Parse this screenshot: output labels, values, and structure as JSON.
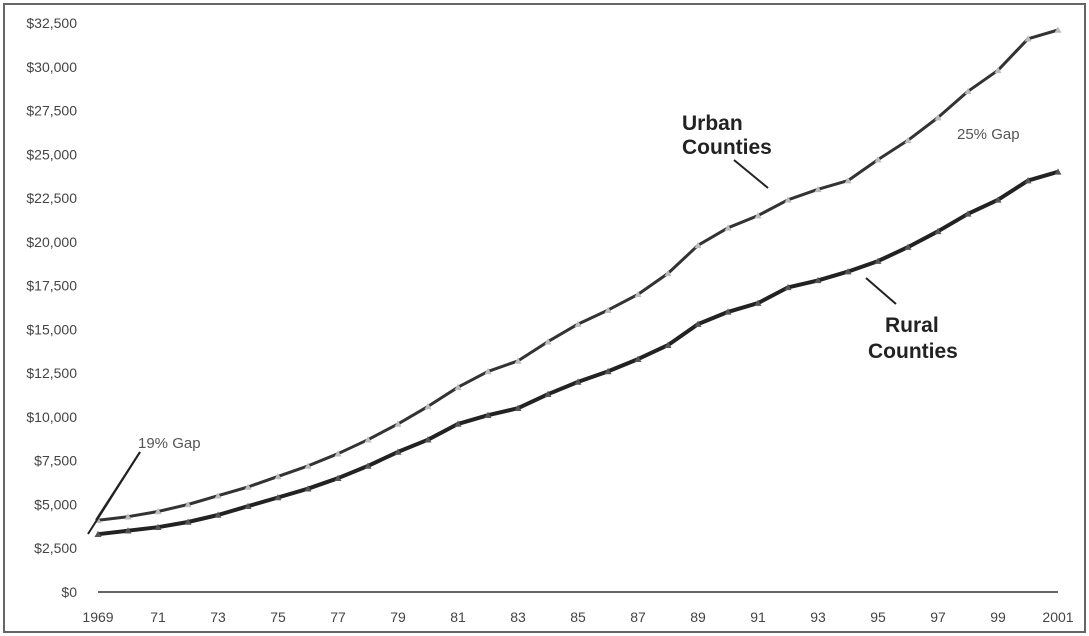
{
  "chart_data": {
    "type": "line",
    "title": "",
    "xlabel": "",
    "ylabel": "",
    "x": [
      1969,
      1970,
      1971,
      1972,
      1973,
      1974,
      1975,
      1976,
      1977,
      1978,
      1979,
      1980,
      1981,
      1982,
      1983,
      1984,
      1985,
      1986,
      1987,
      1988,
      1989,
      1990,
      1991,
      1992,
      1993,
      1994,
      1995,
      1996,
      1997,
      1998,
      1999,
      2000,
      2001
    ],
    "x_tick_labels": [
      "1969",
      "71",
      "73",
      "75",
      "77",
      "79",
      "81",
      "83",
      "85",
      "87",
      "89",
      "91",
      "93",
      "95",
      "97",
      "99",
      "2001"
    ],
    "y_tick_labels": [
      "$0",
      "$2,500",
      "$5,000",
      "$7,500",
      "$10,000",
      "$12,500",
      "$15,000",
      "$17,500",
      "$20,000",
      "$22,500",
      "$25,000",
      "$27,500",
      "$30,000",
      "$32,500"
    ],
    "ylim": [
      0,
      32500
    ],
    "xlim": [
      1969,
      2001
    ],
    "grid": false,
    "series": [
      {
        "name": "Urban Counties",
        "color": "#333333",
        "marker_color": "#bbbbbb",
        "values": [
          4100,
          4300,
          4600,
          5000,
          5500,
          6000,
          6600,
          7200,
          7900,
          8700,
          9600,
          10600,
          11700,
          12600,
          13200,
          14300,
          15300,
          16100,
          17000,
          18200,
          19800,
          20800,
          21500,
          22400,
          23000,
          23500,
          24700,
          25800,
          27100,
          28600,
          29800,
          31600,
          32100
        ]
      },
      {
        "name": "Rural Counties",
        "color": "#222222",
        "marker_color": "#555555",
        "values": [
          3300,
          3500,
          3700,
          4000,
          4400,
          4900,
          5400,
          5900,
          6500,
          7200,
          8000,
          8700,
          9600,
          10100,
          10500,
          11300,
          12000,
          12600,
          13300,
          14100,
          15300,
          16000,
          16500,
          17400,
          17800,
          18300,
          18900,
          19700,
          20600,
          21600,
          22400,
          23500,
          24000
        ]
      }
    ],
    "annotations": {
      "gap_start": "19% Gap",
      "gap_end": "25% Gap",
      "urban_label": [
        "Urban",
        "Counties"
      ],
      "rural_label": [
        "Rural",
        "Counties"
      ]
    }
  }
}
